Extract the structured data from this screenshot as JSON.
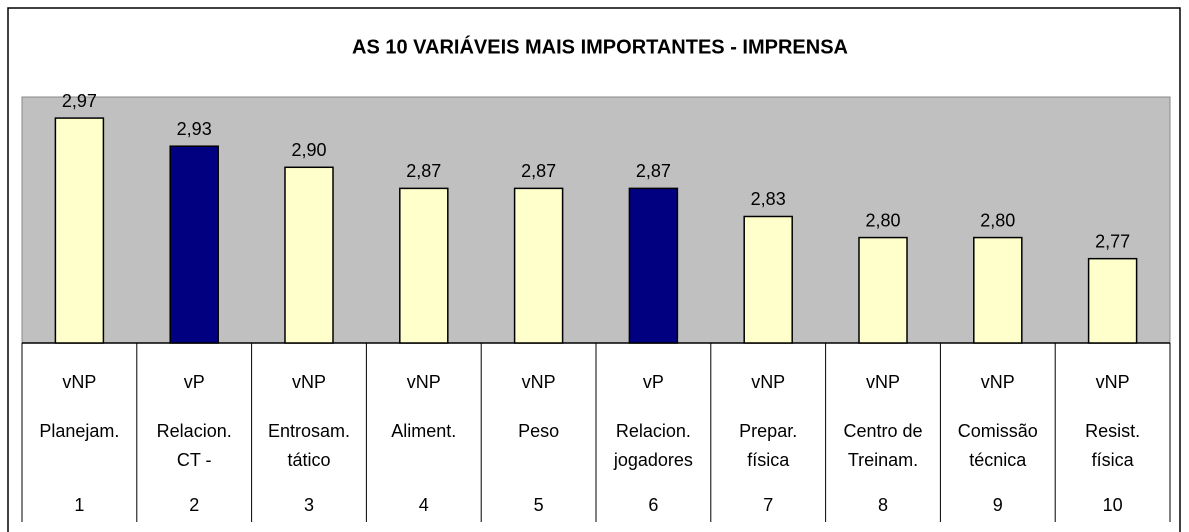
{
  "chart_data": {
    "type": "bar",
    "title": "AS 10 VARIÁVEIS MAIS IMPORTANTES - IMPRENSA",
    "categories": [
      [
        "Planejam."
      ],
      [
        "Relacion.",
        "CT -"
      ],
      [
        "Entrosam.",
        "tático"
      ],
      [
        "Aliment."
      ],
      [
        "Peso"
      ],
      [
        "Relacion.",
        "jogadores"
      ],
      [
        "Prepar.",
        "física"
      ],
      [
        "Centro de",
        "Treinam."
      ],
      [
        "Comissão",
        "técnica"
      ],
      [
        "Resist.",
        "física"
      ]
    ],
    "groups": [
      "vNP",
      "vP",
      "vNP",
      "vNP",
      "vNP",
      "vP",
      "vNP",
      "vNP",
      "vNP",
      "vNP"
    ],
    "ranks": [
      1,
      2,
      3,
      4,
      5,
      6,
      7,
      8,
      9,
      10
    ],
    "values": [
      2.97,
      2.93,
      2.9,
      2.87,
      2.87,
      2.87,
      2.83,
      2.8,
      2.8,
      2.77
    ],
    "value_labels": [
      "2,97",
      "2,93",
      "2,90",
      "2,87",
      "2,87",
      "2,87",
      "2,83",
      "2,80",
      "2,80",
      "2,77"
    ],
    "colors": [
      "#ffffcc",
      "#000080",
      "#ffffcc",
      "#ffffcc",
      "#ffffcc",
      "#000080",
      "#ffffcc",
      "#ffffcc",
      "#ffffcc",
      "#ffffcc"
    ],
    "plot_background": "#c0c0c0",
    "ylim": [
      2.65,
      3.0
    ]
  }
}
